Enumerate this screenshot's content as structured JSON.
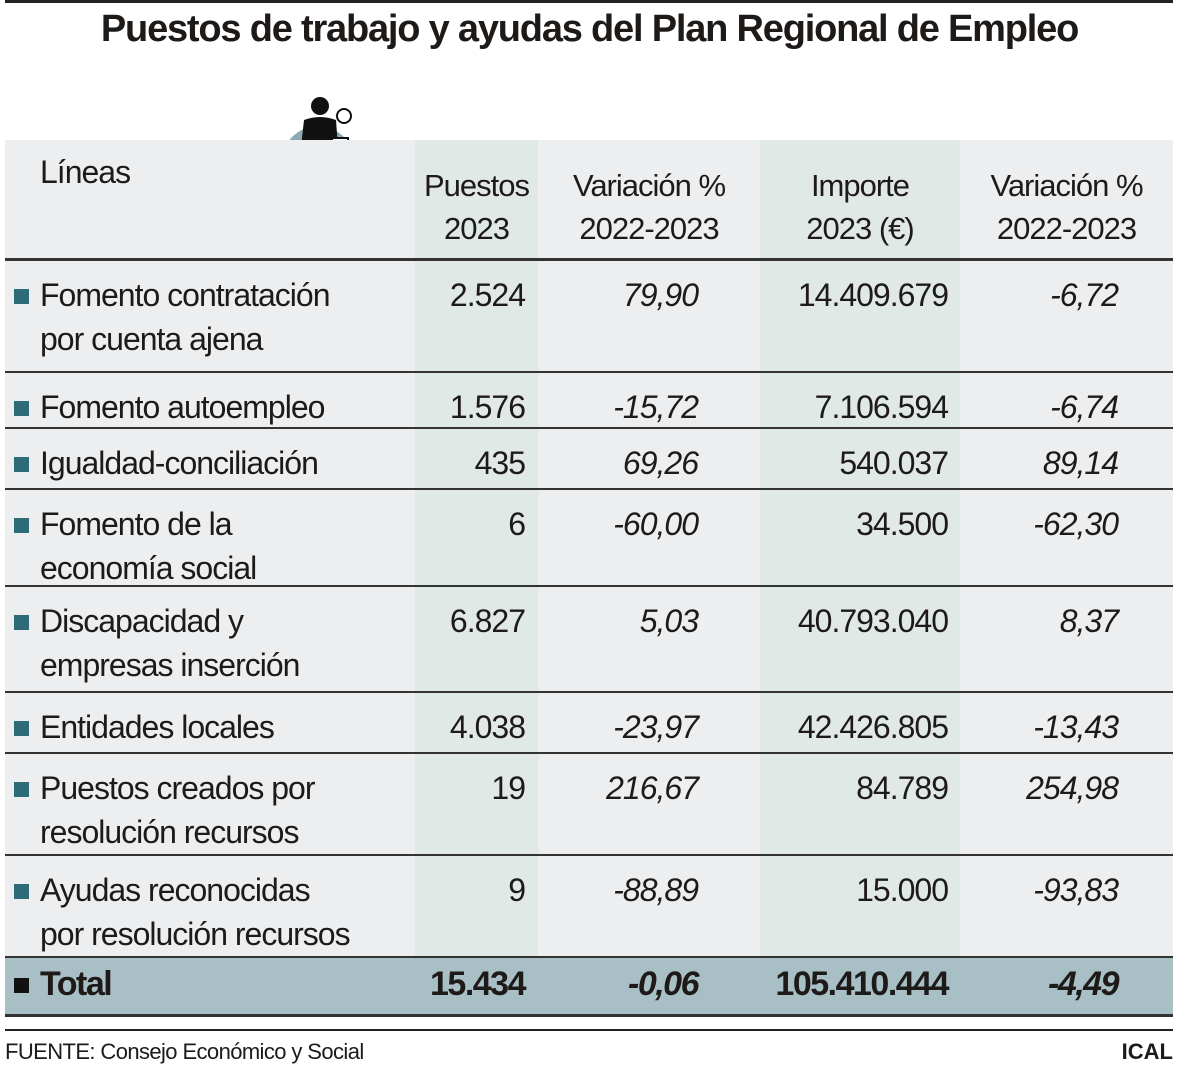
{
  "title": "Puestos de trabajo y ayudas del Plan Regional de Empleo",
  "icon": "worker-with-wrenches-icon",
  "colors": {
    "bullet": "#2d6b78",
    "total_row": "#a9bfc6",
    "column_band": "#e1e9e7",
    "background": "#eceeef"
  },
  "chart_data": {
    "type": "table",
    "columns": [
      {
        "line1": "Líneas",
        "line2": ""
      },
      {
        "line1": "Puestos",
        "line2": "2023"
      },
      {
        "line1": "Variación %",
        "line2": "2022-2023"
      },
      {
        "line1": "Importe",
        "line2": "2023 (€)"
      },
      {
        "line1": "Variación %",
        "line2": "2022-2023"
      }
    ],
    "rows": [
      {
        "label": [
          "Fomento contratación",
          "por cuenta ajena"
        ],
        "puestos": "2.524",
        "var_puestos": "79,90",
        "importe": "14.409.679",
        "var_importe": "-6,72"
      },
      {
        "label": [
          "Fomento autoempleo"
        ],
        "puestos": "1.576",
        "var_puestos": "-15,72",
        "importe": "7.106.594",
        "var_importe": "-6,74"
      },
      {
        "label": [
          "Igualdad-conciliación"
        ],
        "puestos": "435",
        "var_puestos": "69,26",
        "importe": "540.037",
        "var_importe": "89,14"
      },
      {
        "label": [
          "Fomento de la",
          "economía social"
        ],
        "puestos": "6",
        "var_puestos": "-60,00",
        "importe": "34.500",
        "var_importe": "-62,30"
      },
      {
        "label": [
          "Discapacidad y",
          "empresas inserción"
        ],
        "puestos": "6.827",
        "var_puestos": "5,03",
        "importe": "40.793.040",
        "var_importe": "8,37"
      },
      {
        "label": [
          "Entidades locales"
        ],
        "puestos": "4.038",
        "var_puestos": "-23,97",
        "importe": "42.426.805",
        "var_importe": "-13,43"
      },
      {
        "label": [
          "Puestos creados por",
          "resolución recursos"
        ],
        "puestos": "19",
        "var_puestos": "216,67",
        "importe": "84.789",
        "var_importe": "254,98"
      },
      {
        "label": [
          "Ayudas reconocidas",
          "por resolución recursos"
        ],
        "puestos": "9",
        "var_puestos": "-88,89",
        "importe": "15.000",
        "var_importe": "-93,83"
      }
    ],
    "total": {
      "label": "Total",
      "puestos": "15.434",
      "var_puestos": "-0,06",
      "importe": "105.410.444",
      "var_importe": "-4,49"
    }
  },
  "footer": {
    "source": "FUENTE: Consejo Económico y Social",
    "credit": "ICAL"
  }
}
